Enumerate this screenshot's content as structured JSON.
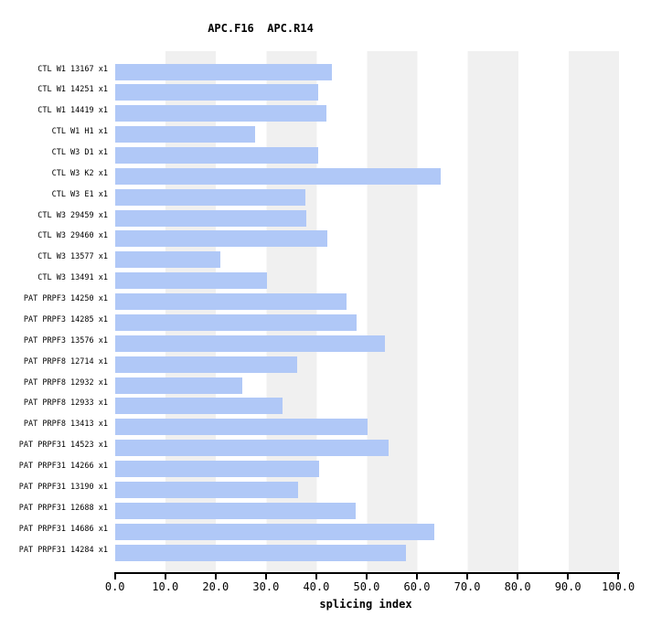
{
  "title": "APC.F16  APC.R14",
  "chart_data": {
    "type": "bar",
    "orientation": "horizontal",
    "title": "APC.F16  APC.R14",
    "xlabel": "splicing index",
    "xlim": [
      0,
      100
    ],
    "xticks": [
      "0.0",
      "10.0",
      "20.0",
      "30.0",
      "40.0",
      "50.0",
      "60.0",
      "70.0",
      "80.0",
      "90.0",
      "100.0"
    ],
    "legend": "none",
    "background_bands": "alternating vertical bands every 10 units (white / light gray)",
    "bar_color": "#b0c8f7",
    "stripe_color": "#f0f0f0",
    "axis_color": "#000000",
    "categories": [
      "CTL W1 13167 x1",
      "CTL W1 14251 x1",
      "CTL W1 14419 x1",
      "CTL W1 H1 x1",
      "CTL W3 D1 x1",
      "CTL W3 K2 x1",
      "CTL W3 E1 x1",
      "CTL W3 29459 x1",
      "CTL W3 29460 x1",
      "CTL W3 13577 x1",
      "CTL W3 13491 x1",
      "PAT PRPF3 14250 x1",
      "PAT PRPF3 14285 x1",
      "PAT PRPF3 13576 x1",
      "PAT PRPF8 12714 x1",
      "PAT PRPF8 12932 x1",
      "PAT PRPF8 12933 x1",
      "PAT PRPF8 13413 x1",
      "PAT PRPF31 14523 x1",
      "PAT PRPF31 14266 x1",
      "PAT PRPF31 13190 x1",
      "PAT PRPF31 12688 x1",
      "PAT PRPF31 14686 x1",
      "PAT PRPF31 14284 x1"
    ],
    "values": [
      43.2,
      40.4,
      42.0,
      27.9,
      40.4,
      64.8,
      37.9,
      38.1,
      42.2,
      21.0,
      30.2,
      46.1,
      48.1,
      53.7,
      36.2,
      25.4,
      33.4,
      50.2,
      54.4,
      40.6,
      36.4,
      47.8,
      63.4,
      57.8
    ]
  }
}
